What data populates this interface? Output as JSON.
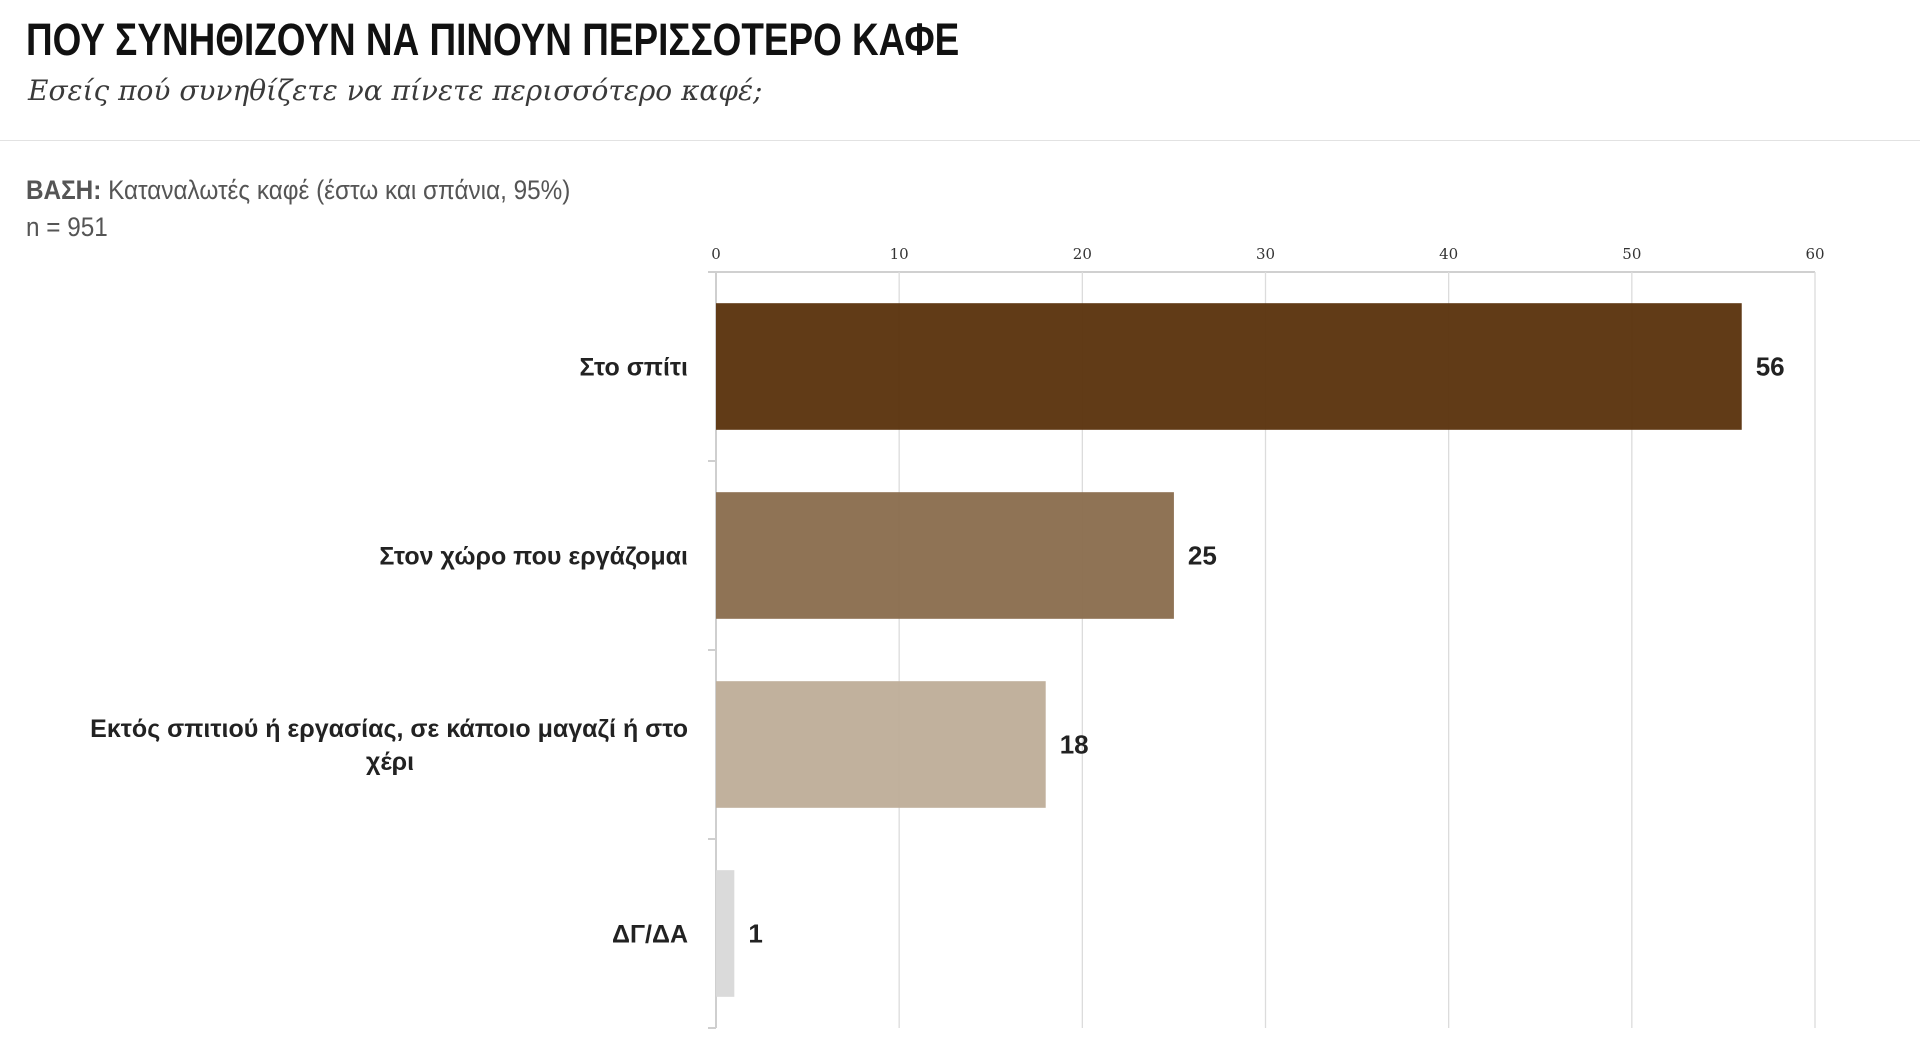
{
  "header": {
    "title": "ΠΟΥ ΣΥΝΗΘΙΖΟΥΝ ΝΑ ΠΙΝΟΥΝ ΠΕΡΙΣΣΟΤΕΡΟ ΚΑΦΕ",
    "subtitle": "Εσείς πού συνηθίζετε να πίνετε περισσότερο καφέ;"
  },
  "base": {
    "label": "ΒΑΣΗ:",
    "text": " Καταναλωτές καφέ (έστω και σπάνια, 95%)",
    "n": "n = 951"
  },
  "chart_data": {
    "type": "bar",
    "orientation": "horizontal",
    "categories": [
      "Στο σπίτι",
      "Στον χώρο που εργάζομαι",
      "Εκτός σπιτιού ή εργασίας, σε κάποιο μαγαζί ή στο χέρι",
      "ΔΓ/ΔΑ"
    ],
    "category_lines": [
      [
        "Στο σπίτι"
      ],
      [
        "Στον χώρο που εργάζομαι"
      ],
      [
        "Εκτός σπιτιού ή εργασίας, σε κάποιο μαγαζί ή στο",
        "χέρι"
      ],
      [
        "ΔΓ/ΔΑ"
      ]
    ],
    "values": [
      56,
      25,
      18,
      1
    ],
    "colors": [
      "#5c3510",
      "#8b6e50",
      "#bfae9a",
      "#d9d9d9"
    ],
    "xlim": [
      0,
      60
    ],
    "ticks": [
      0,
      10,
      20,
      30,
      40,
      50,
      60
    ],
    "axis_position": "top",
    "grid": true
  }
}
